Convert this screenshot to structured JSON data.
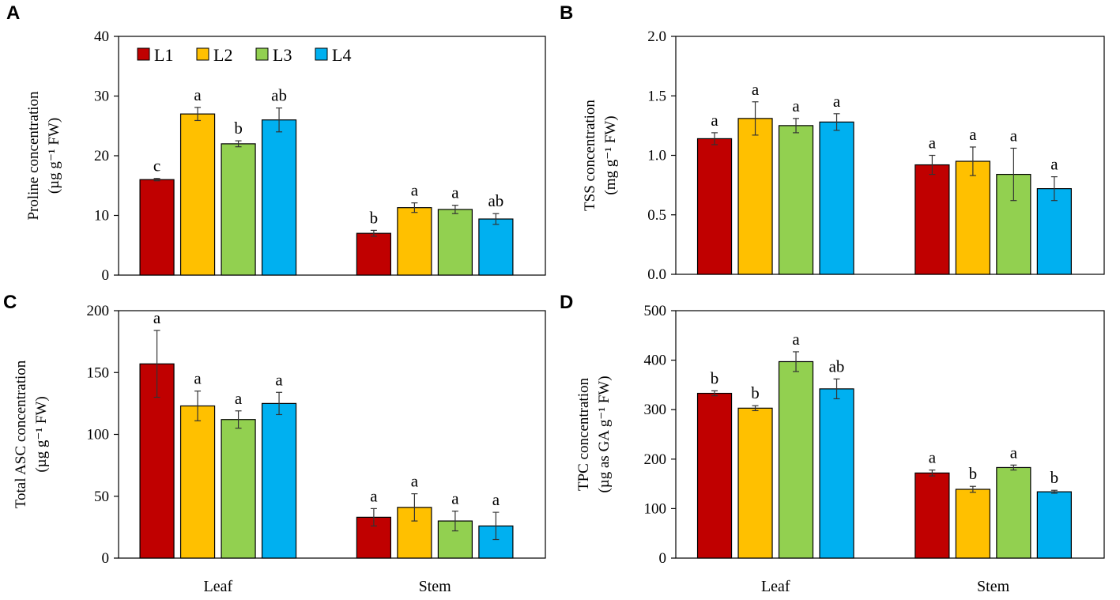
{
  "colors": {
    "L1": "#C00000",
    "L2": "#FFC000",
    "L3": "#92D050",
    "L4": "#00B0F0"
  },
  "legend": [
    "L1",
    "L2",
    "L3",
    "L4"
  ],
  "chart_data": [
    {
      "panel": "A",
      "type": "bar",
      "categories": [
        "Leaf",
        "Stem"
      ],
      "show_category_labels": false,
      "ylabel_line1": "Proline concentration",
      "ylabel_line2": "(µg g⁻¹ FW)",
      "ylim": [
        0,
        40
      ],
      "yticks": [
        0,
        10,
        20,
        30,
        40
      ],
      "tick_decimals": 0,
      "legend_position": "top-left",
      "series": [
        {
          "name": "L1",
          "values": [
            16,
            7
          ],
          "errors": [
            0.2,
            0.5
          ],
          "letters": [
            "c",
            "b"
          ]
        },
        {
          "name": "L2",
          "values": [
            27,
            11.3
          ],
          "errors": [
            1.1,
            0.8
          ],
          "letters": [
            "a",
            "a"
          ]
        },
        {
          "name": "L3",
          "values": [
            22,
            11
          ],
          "errors": [
            0.5,
            0.7
          ],
          "letters": [
            "b",
            "a"
          ]
        },
        {
          "name": "L4",
          "values": [
            26,
            9.4
          ],
          "errors": [
            2.0,
            0.9
          ],
          "letters": [
            "ab",
            "ab"
          ]
        }
      ]
    },
    {
      "panel": "B",
      "type": "bar",
      "categories": [
        "Leaf",
        "Stem"
      ],
      "show_category_labels": false,
      "ylabel_line1": "TSS concentration",
      "ylabel_line2": "(mg g⁻¹ FW)",
      "ylim": [
        0,
        2
      ],
      "yticks": [
        0,
        0.5,
        1.0,
        1.5,
        2.0
      ],
      "tick_decimals": 1,
      "series": [
        {
          "name": "L1",
          "values": [
            1.14,
            0.92
          ],
          "errors": [
            0.05,
            0.08
          ],
          "letters": [
            "a",
            "a"
          ]
        },
        {
          "name": "L2",
          "values": [
            1.31,
            0.95
          ],
          "errors": [
            0.14,
            0.12
          ],
          "letters": [
            "a",
            "a"
          ]
        },
        {
          "name": "L3",
          "values": [
            1.25,
            0.84
          ],
          "errors": [
            0.06,
            0.22
          ],
          "letters": [
            "a",
            "a"
          ]
        },
        {
          "name": "L4",
          "values": [
            1.28,
            0.72
          ],
          "errors": [
            0.07,
            0.1
          ],
          "letters": [
            "a",
            "a"
          ]
        }
      ]
    },
    {
      "panel": "C",
      "type": "bar",
      "categories": [
        "Leaf",
        "Stem"
      ],
      "show_category_labels": true,
      "ylabel_line1": "Total ASC concentration",
      "ylabel_line2": "(µg g⁻¹ FW)",
      "ylim": [
        0,
        200
      ],
      "yticks": [
        0,
        50,
        100,
        150,
        200
      ],
      "tick_decimals": 0,
      "series": [
        {
          "name": "L1",
          "values": [
            157,
            33
          ],
          "errors": [
            27,
            7
          ],
          "letters": [
            "a",
            "a"
          ]
        },
        {
          "name": "L2",
          "values": [
            123,
            41
          ],
          "errors": [
            12,
            11
          ],
          "letters": [
            "a",
            "a"
          ]
        },
        {
          "name": "L3",
          "values": [
            112,
            30
          ],
          "errors": [
            7,
            8
          ],
          "letters": [
            "a",
            "a"
          ]
        },
        {
          "name": "L4",
          "values": [
            125,
            26
          ],
          "errors": [
            9,
            11
          ],
          "letters": [
            "a",
            "a"
          ]
        }
      ]
    },
    {
      "panel": "D",
      "type": "bar",
      "categories": [
        "Leaf",
        "Stem"
      ],
      "show_category_labels": true,
      "ylabel_line1": "TPC concentration",
      "ylabel_line2": "(µg as GA g⁻¹ FW)",
      "ylim": [
        0,
        500
      ],
      "yticks": [
        0,
        100,
        200,
        300,
        400,
        500
      ],
      "tick_decimals": 0,
      "series": [
        {
          "name": "L1",
          "values": [
            333,
            172
          ],
          "errors": [
            5,
            6
          ],
          "letters": [
            "b",
            "a"
          ]
        },
        {
          "name": "L2",
          "values": [
            303,
            139
          ],
          "errors": [
            5,
            6
          ],
          "letters": [
            "b",
            "b"
          ]
        },
        {
          "name": "L3",
          "values": [
            397,
            183
          ],
          "errors": [
            20,
            5
          ],
          "letters": [
            "a",
            "a"
          ]
        },
        {
          "name": "L4",
          "values": [
            342,
            134
          ],
          "errors": [
            20,
            3
          ],
          "letters": [
            "ab",
            "b"
          ]
        }
      ]
    }
  ]
}
